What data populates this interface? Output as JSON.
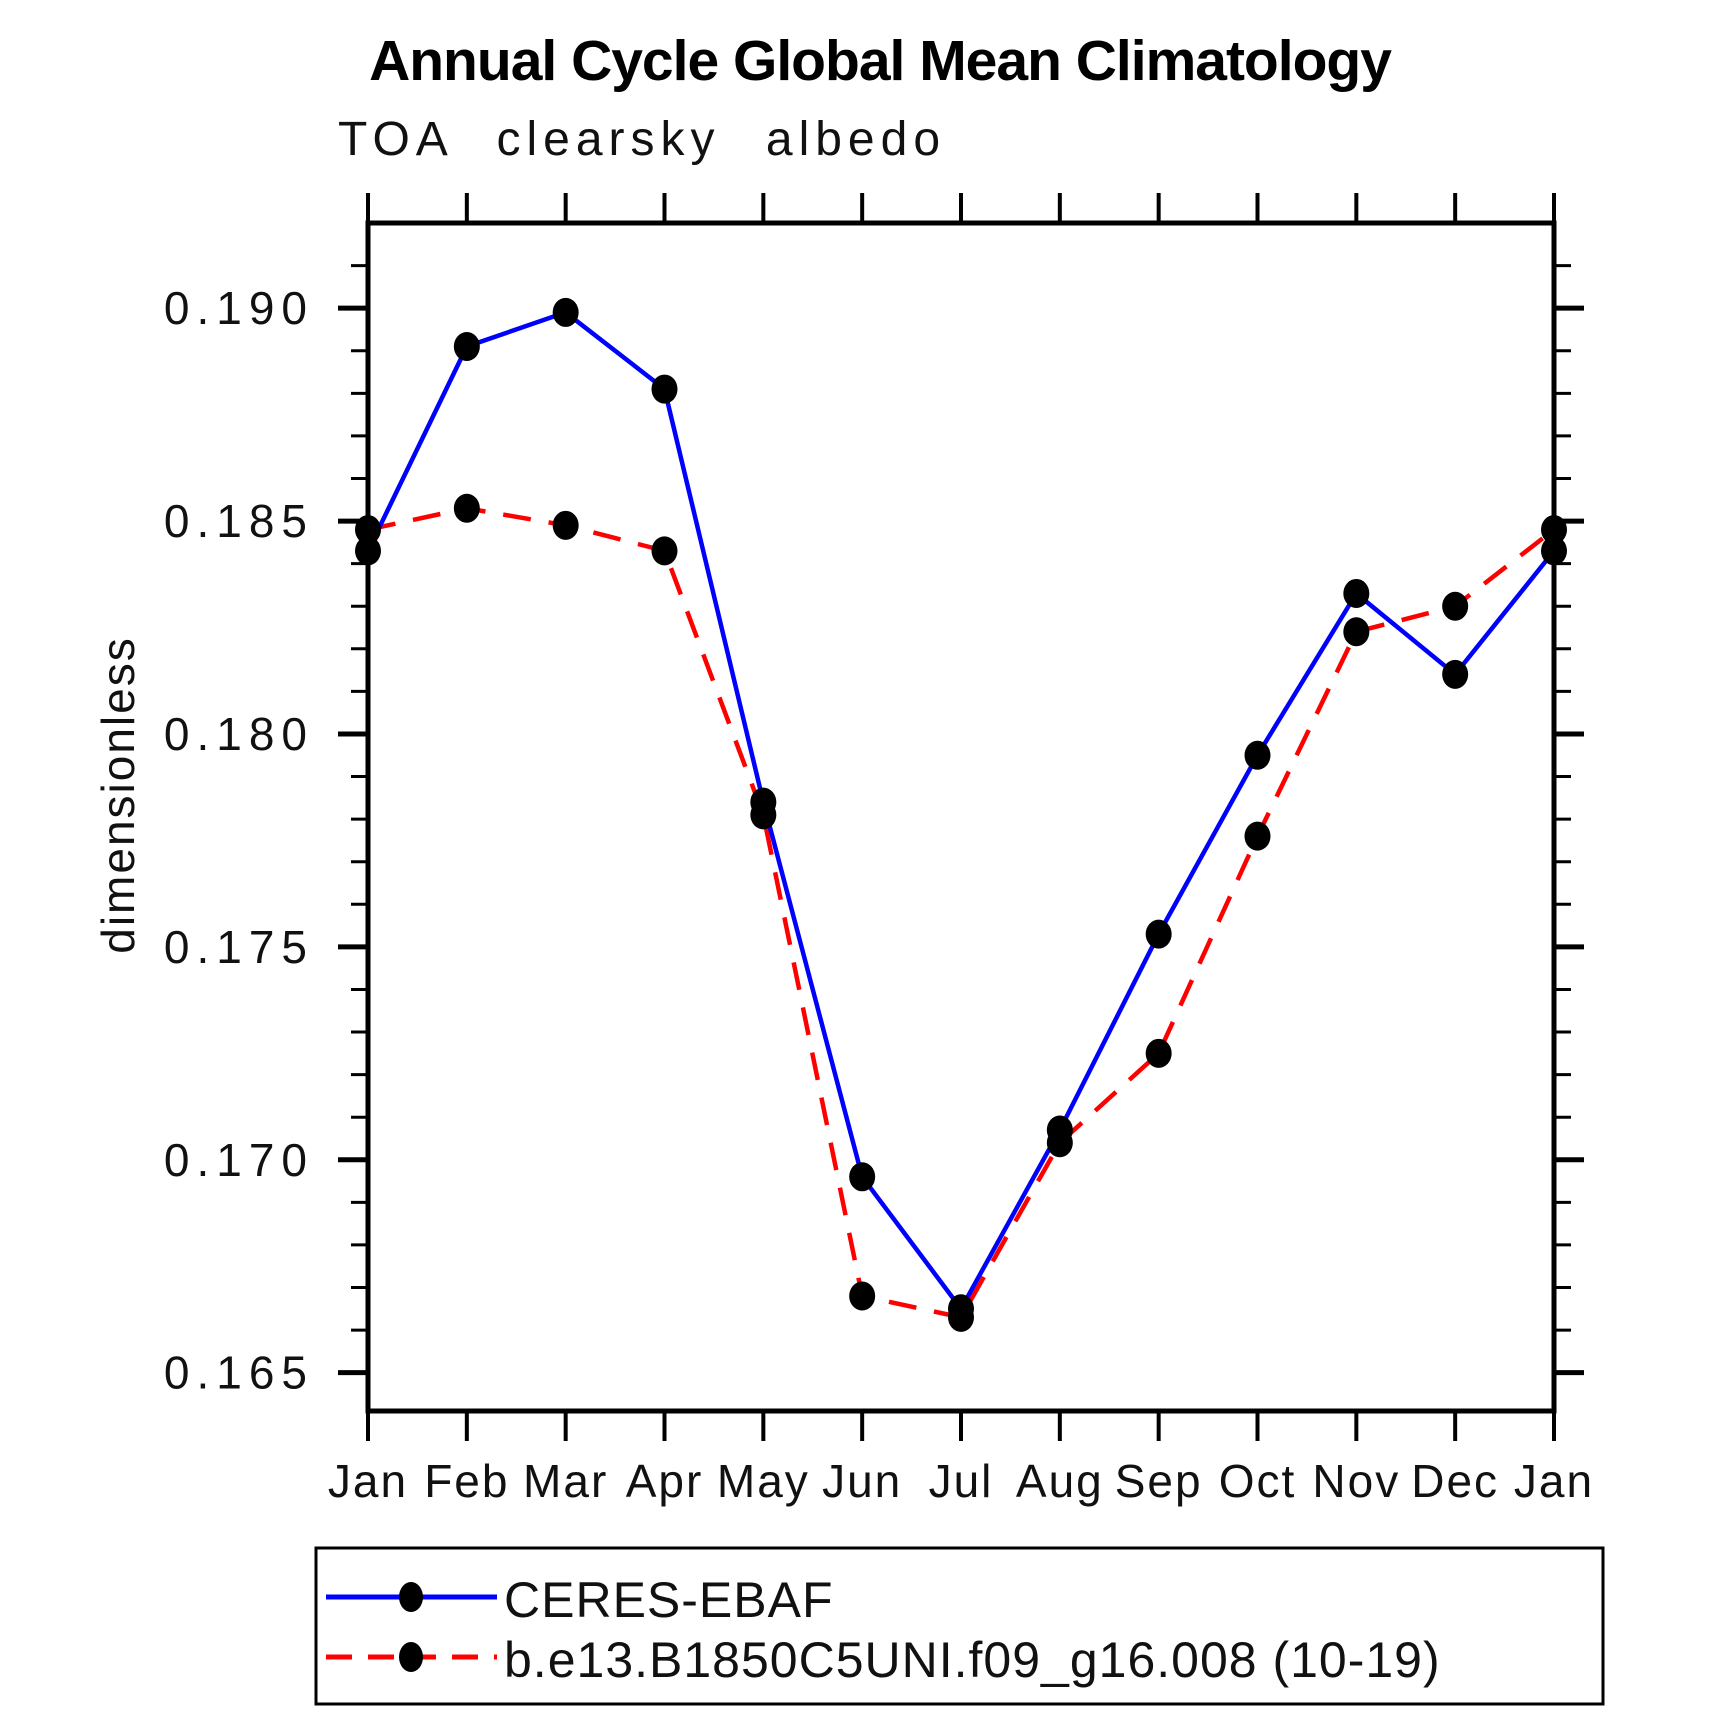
{
  "chart_data": {
    "type": "line",
    "title": "Annual Cycle Global Mean Climatology",
    "subtitle": "TOA clearsky albedo",
    "ylabel": "dimensionless",
    "xlabel": "",
    "categories": [
      "Jan",
      "Feb",
      "Mar",
      "Apr",
      "May",
      "Jun",
      "Jul",
      "Aug",
      "Sep",
      "Oct",
      "Nov",
      "Dec",
      "Jan"
    ],
    "series": [
      {
        "name": "CERES-EBAF",
        "color": "#0000ff",
        "line_style": "solid",
        "marker": "filled-circle",
        "marker_color": "#000000",
        "values": [
          0.1843,
          0.1891,
          0.1899,
          0.1881,
          0.1784,
          0.1696,
          0.1665,
          0.1707,
          0.1753,
          0.1795,
          0.1833,
          0.1814,
          0.1843
        ]
      },
      {
        "name": "b.e13.B1850C5UNI.f09_g16.008 (10-19)",
        "color": "#ff0000",
        "line_style": "dashed",
        "marker": "filled-circle",
        "marker_color": "#000000",
        "values": [
          0.1848,
          0.1853,
          0.1849,
          0.1843,
          0.1781,
          0.1668,
          0.1663,
          0.1704,
          0.1725,
          0.1776,
          0.1824,
          0.183,
          0.1848
        ]
      }
    ],
    "ylim": [
      0.1641,
      0.192
    ],
    "y_major_ticks": [
      0.165,
      0.17,
      0.175,
      0.18,
      0.185,
      0.19
    ],
    "y_minor_tick_step": 0.001,
    "y_tick_decimals": 3,
    "grid": false,
    "legend_position": "bottom-left-box",
    "axis_color": "#000000",
    "background_color": "#ffffff"
  }
}
